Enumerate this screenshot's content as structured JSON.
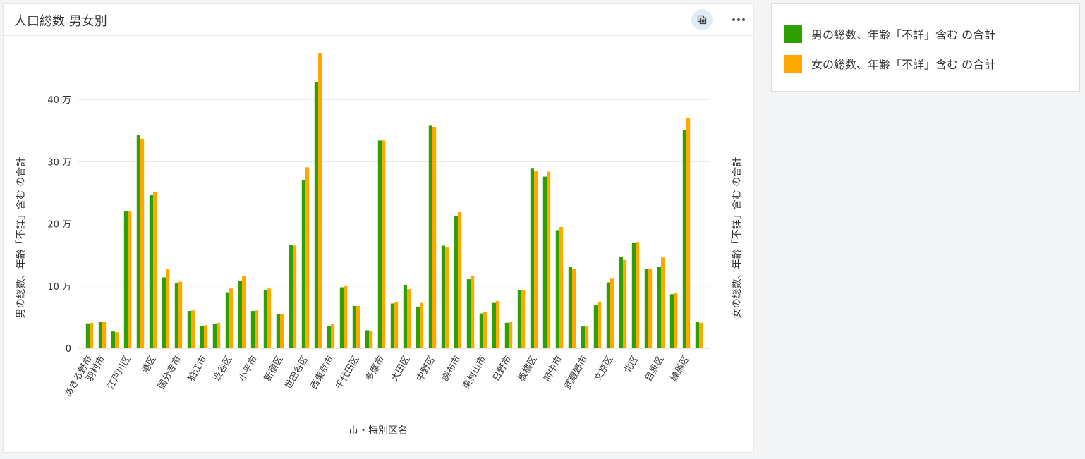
{
  "card": {
    "title": "人口総数 男女別"
  },
  "icons": {
    "expand": "expand-icon",
    "more": "more-horizontal-icon"
  },
  "colors": {
    "male": "#2ea000",
    "female": "#ffa800",
    "grid": "#e6e6e6",
    "axis_text": "#333333"
  },
  "legend": {
    "items": [
      {
        "label": "男の総数、年齢「不詳」含む の合計"
      },
      {
        "label": "女の総数、年齢「不詳」含む の合計"
      }
    ]
  },
  "chart_data": {
    "type": "bar",
    "title": "人口総数 男女別",
    "xlabel": "市・特別区名",
    "ylabel": "男の総数、年齢「不詳」含む の合計",
    "ylabel_right": "女の総数、年齢「不詳」含む の合計",
    "ylim": [
      0,
      450000
    ],
    "yticks": [
      0,
      100000,
      200000,
      300000,
      400000
    ],
    "ytick_labels": [
      "0",
      "10 万",
      "20 万",
      "30 万",
      "40 万"
    ],
    "grid": true,
    "legend_position": "top-right (outside)",
    "categories": [
      "あきる野市",
      "羽村市",
      "",
      "江戸川区",
      "",
      "港区",
      "",
      "国分寺市",
      "",
      "狛江市",
      "",
      "渋谷区",
      "",
      "小平市",
      "",
      "新宿区",
      "",
      "世田谷区",
      "",
      "西東京市",
      "",
      "千代田区",
      "",
      "多摩市",
      "",
      "大田区",
      "",
      "中野区",
      "",
      "調布市",
      "",
      "東村山市",
      "",
      "日野市",
      "",
      "板橋区",
      "",
      "府中市",
      "",
      "武蔵野市",
      "",
      "文京区",
      "",
      "北区",
      "",
      "目黒区",
      "",
      "練馬区",
      ""
    ],
    "series": [
      {
        "name": "男の総数、年齢「不詳」含む の合計",
        "values": [
          40000,
          43000,
          27000,
          221000,
          343000,
          246000,
          114000,
          105000,
          60000,
          36000,
          39000,
          90000,
          108000,
          60000,
          93000,
          55000,
          166000,
          271000,
          428000,
          36000,
          98000,
          68000,
          29000,
          334000,
          72000,
          102000,
          67000,
          359000,
          165000,
          212000,
          111000,
          56000,
          73000,
          41000,
          93000,
          290000,
          276000,
          190000,
          131000,
          35000,
          69000,
          106000,
          147000,
          169000,
          128000,
          131000,
          87000,
          351000,
          42000
        ]
      },
      {
        "name": "女の総数、年齢「不詳」含む の合計",
        "values": [
          41000,
          43000,
          26000,
          221000,
          337000,
          251000,
          128000,
          107000,
          61000,
          37000,
          41000,
          96000,
          116000,
          61000,
          96000,
          55000,
          165000,
          291000,
          475000,
          39000,
          101000,
          68000,
          28000,
          334000,
          74000,
          95000,
          73000,
          356000,
          162000,
          220000,
          117000,
          59000,
          76000,
          43000,
          93000,
          285000,
          284000,
          195000,
          127000,
          35000,
          75000,
          113000,
          142000,
          171000,
          128000,
          146000,
          89000,
          370000,
          41000
        ]
      }
    ]
  }
}
